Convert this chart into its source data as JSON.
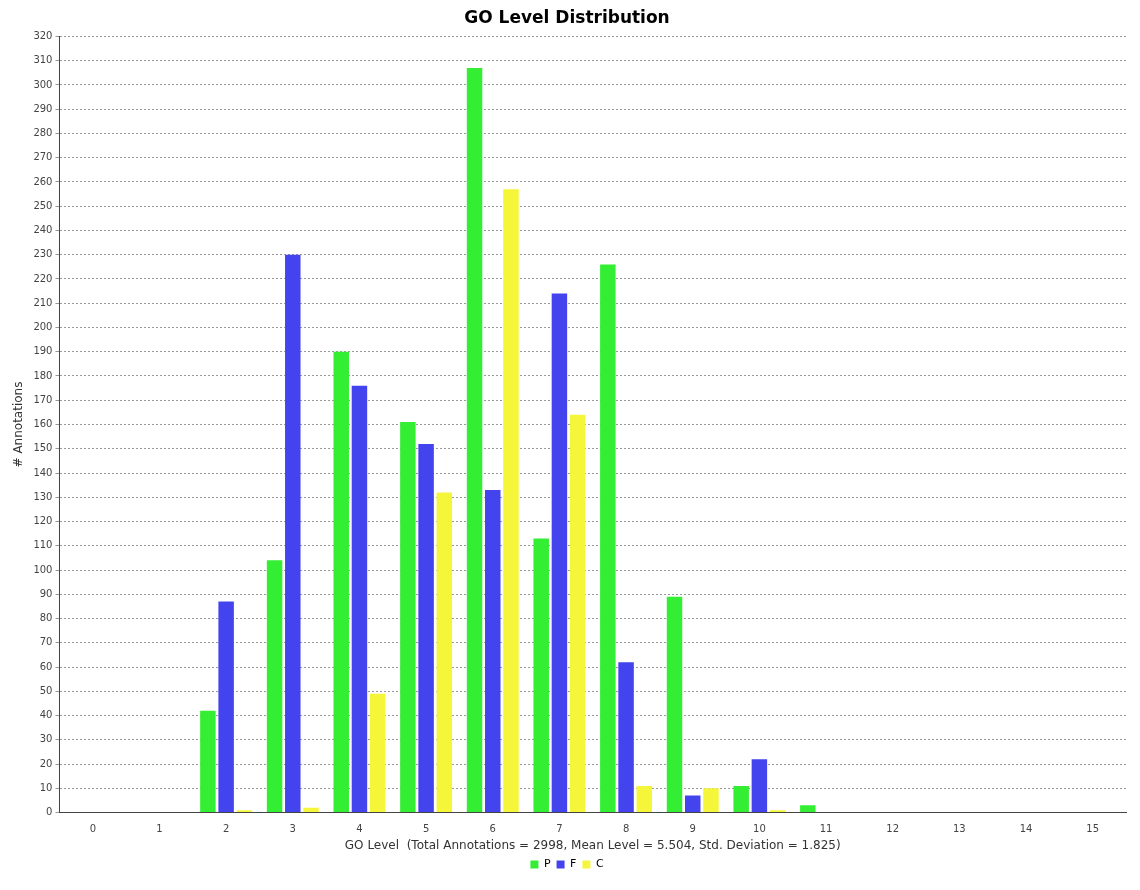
{
  "chart_data": {
    "type": "bar",
    "title": "GO Level Distribution",
    "xlabel": "GO Level  (Total Annotations = 2998, Mean Level = 5.504, Std. Deviation = 1.825)",
    "ylabel": "# Annotations",
    "categories": [
      "0",
      "1",
      "2",
      "3",
      "4",
      "5",
      "6",
      "7",
      "8",
      "9",
      "10",
      "11",
      "12",
      "13",
      "14",
      "15"
    ],
    "series": [
      {
        "name": "P",
        "color": "#33ee33",
        "values": [
          0,
          0,
          42,
          104,
          190,
          161,
          307,
          113,
          226,
          89,
          11,
          3,
          0,
          0,
          0,
          0
        ]
      },
      {
        "name": "F",
        "color": "#4444ee",
        "values": [
          0,
          0,
          87,
          230,
          176,
          152,
          133,
          214,
          62,
          7,
          22,
          0,
          0,
          0,
          0,
          0
        ]
      },
      {
        "name": "C",
        "color": "#f5f53a",
        "values": [
          0,
          0,
          1,
          2,
          49,
          132,
          257,
          164,
          11,
          10,
          1,
          0,
          0,
          0,
          0,
          0
        ]
      }
    ],
    "ylim": [
      0,
      320
    ],
    "yticks": [
      0,
      10,
      20,
      30,
      40,
      50,
      60,
      70,
      80,
      90,
      100,
      110,
      120,
      130,
      140,
      150,
      160,
      170,
      180,
      190,
      200,
      210,
      220,
      230,
      240,
      250,
      260,
      270,
      280,
      290,
      300,
      310,
      320
    ],
    "grid": "y",
    "legend": "bottom"
  }
}
